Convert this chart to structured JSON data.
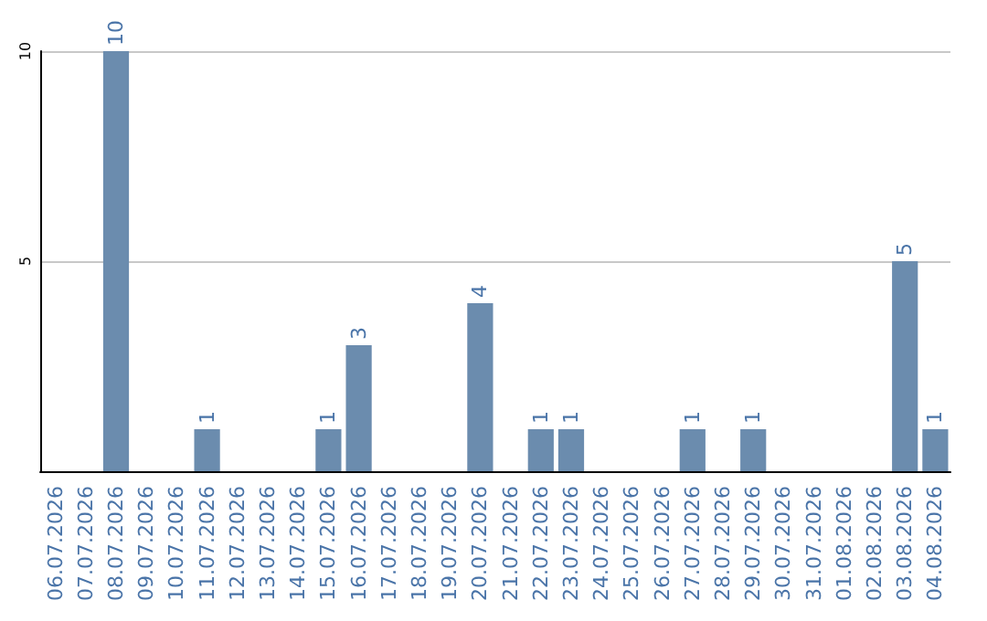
{
  "chart_data": {
    "type": "bar",
    "categories": [
      "06.07.2026",
      "07.07.2026",
      "08.07.2026",
      "09.07.2026",
      "10.07.2026",
      "11.07.2026",
      "12.07.2026",
      "13.07.2026",
      "14.07.2026",
      "15.07.2026",
      "16.07.2026",
      "17.07.2026",
      "18.07.2026",
      "19.07.2026",
      "20.07.2026",
      "21.07.2026",
      "22.07.2026",
      "23.07.2026",
      "24.07.2026",
      "25.07.2026",
      "26.07.2026",
      "27.07.2026",
      "28.07.2026",
      "29.07.2026",
      "30.07.2026",
      "31.07.2026",
      "01.08.2026",
      "02.08.2026",
      "03.08.2026",
      "04.08.2026"
    ],
    "values": [
      0,
      0,
      10,
      0,
      0,
      1,
      0,
      0,
      0,
      1,
      3,
      0,
      0,
      0,
      4,
      0,
      1,
      1,
      0,
      0,
      0,
      1,
      0,
      1,
      0,
      0,
      0,
      0,
      5,
      1
    ],
    "value_labels": [
      null,
      null,
      "10",
      null,
      null,
      "1",
      null,
      null,
      null,
      "1",
      "3",
      null,
      null,
      null,
      "4",
      null,
      "1",
      "1",
      null,
      null,
      null,
      "1",
      null,
      "1",
      null,
      null,
      null,
      null,
      "5",
      "1"
    ],
    "color": "#6b8cae",
    "ylim": [
      0,
      10
    ],
    "yticks": [
      5,
      10
    ],
    "grid": "y"
  }
}
